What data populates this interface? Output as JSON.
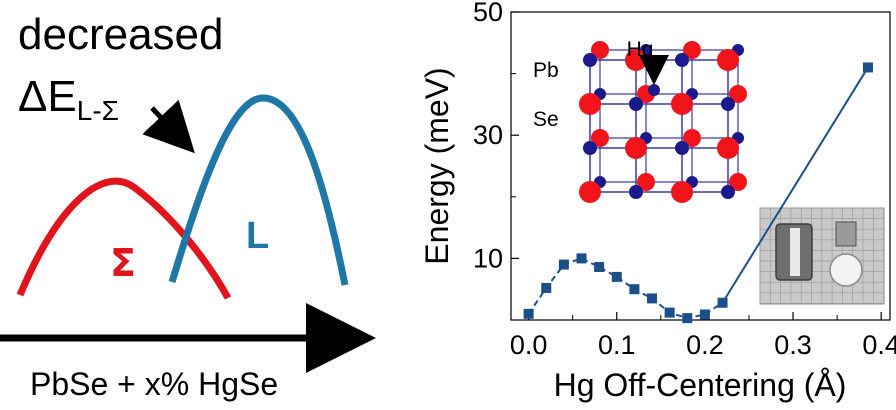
{
  "left_panel": {
    "headline": "decreased",
    "delta_symbol": "ΔE",
    "delta_subscript": "L-Σ",
    "sigma_label": "Σ",
    "l_label": "L",
    "composition_label": "PbSe + x% HgSe",
    "colors": {
      "sigma_band": "#e1141b",
      "l_band": "#1f77a8",
      "arrow": "#000000"
    }
  },
  "inset": {
    "label_hg": "Hg",
    "label_pb": "Pb",
    "label_se": "Se",
    "colors": {
      "se_atom": "#f2141b",
      "pb_atom": "#1a1a8c",
      "bond": "#3a3aa8"
    }
  },
  "chart_data": {
    "type": "line",
    "xlabel": "Hg Off-Centering (Å)",
    "ylabel": "Energy (meV)",
    "xlim": [
      -0.02,
      0.41
    ],
    "ylim": [
      0,
      50
    ],
    "xticks": [
      "0.0",
      "0.1",
      "0.2",
      "0.3",
      "0.4"
    ],
    "xtick_values": [
      0.0,
      0.1,
      0.2,
      0.3,
      0.4
    ],
    "yticks": [
      "10",
      "30",
      "50"
    ],
    "ytick_values": [
      10,
      30,
      50
    ],
    "color": "#1b4f8a",
    "series": [
      {
        "name": "Energy",
        "x": [
          0.0,
          0.02,
          0.04,
          0.06,
          0.08,
          0.1,
          0.12,
          0.14,
          0.16,
          0.18,
          0.2,
          0.22,
          0.385
        ],
        "values": [
          1.0,
          5.2,
          9.0,
          10.0,
          8.6,
          7.0,
          5.0,
          3.5,
          1.2,
          0.3,
          0.9,
          2.8,
          41.0
        ],
        "dashed_until_index": 11
      }
    ]
  }
}
